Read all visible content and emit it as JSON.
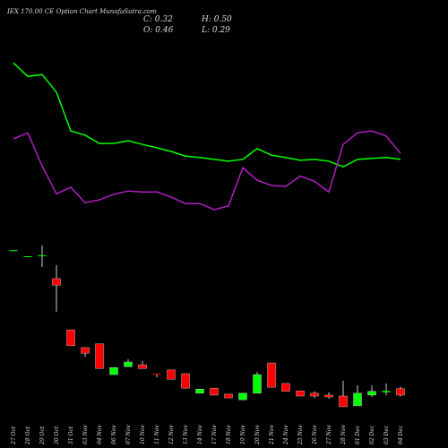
{
  "chart_data": {
    "type": "candlestick",
    "title": "IEX 170.00 CE Option Chart MunafaSutra.com",
    "info": [
      "C: 0.32",
      "H: 0.50",
      "O: 0.46",
      "L: 0.29"
    ],
    "categories": [
      "27 Oct",
      "28 Oct",
      "29 Oct",
      "30 Oct",
      "31 Oct",
      "03 Nov",
      "04 Nov",
      "06 Nov",
      "07 Nov",
      "10 Nov",
      "11 Nov",
      "12 Nov",
      "13 Nov",
      "14 Nov",
      "17 Nov",
      "18 Nov",
      "19 Nov",
      "20 Nov",
      "21 Nov",
      "24 Nov",
      "25 Nov",
      "26 Nov",
      "27 Nov",
      "28 Nov",
      "01 Dec",
      "02 Dec",
      "03 Dec",
      "04 Dec"
    ],
    "open": [
      3.41,
      3.29,
      3.31,
      2.82,
      1.72,
      1.34,
      1.42,
      0.76,
      0.93,
      0.97,
      0.78,
      0.86,
      0.78,
      0.36,
      0.47,
      0.34,
      0.22,
      0.36,
      1.01,
      0.57,
      0.41,
      0.36,
      0.32,
      0.3,
      0.09,
      0.32,
      0.38,
      0.46
    ],
    "high": [
      3.43,
      3.3,
      3.53,
      3.11,
      1.72,
      1.34,
      1.42,
      0.91,
      1.09,
      1.05,
      0.78,
      0.86,
      0.78,
      0.45,
      0.47,
      0.34,
      0.36,
      0.82,
      1.01,
      0.57,
      0.41,
      0.4,
      0.38,
      0.63,
      0.53,
      0.53,
      0.57,
      0.5
    ],
    "low": [
      3.41,
      3.29,
      3.07,
      2.11,
      1.38,
      1.14,
      0.89,
      0.76,
      0.93,
      0.89,
      0.7,
      0.66,
      0.47,
      0.36,
      0.32,
      0.26,
      0.22,
      0.36,
      0.49,
      0.4,
      0.3,
      0.26,
      0.24,
      0.07,
      0.09,
      0.28,
      0.32,
      0.29
    ],
    "close": [
      3.43,
      3.3,
      3.32,
      2.68,
      1.38,
      1.22,
      0.89,
      0.91,
      1.03,
      0.89,
      0.76,
      0.66,
      0.47,
      0.45,
      0.32,
      0.26,
      0.36,
      0.76,
      0.49,
      0.4,
      0.3,
      0.3,
      0.28,
      0.07,
      0.36,
      0.4,
      0.41,
      0.32
    ],
    "up_color": "#00ff00",
    "down_color": "#ff0000",
    "series": [
      {
        "color": "#00ff00",
        "values": [
          7.45,
          7.16,
          7.2,
          6.82,
          5.99,
          5.9,
          5.72,
          5.72,
          5.78,
          5.7,
          5.63,
          5.55,
          5.45,
          5.42,
          5.38,
          5.34,
          5.38,
          5.61,
          5.47,
          5.42,
          5.36,
          5.38,
          5.34,
          5.22,
          5.38,
          5.4,
          5.42,
          5.38
        ]
      },
      {
        "color": "#b020c0",
        "values": [
          5.82,
          5.95,
          5.24,
          4.64,
          4.78,
          4.45,
          4.51,
          4.63,
          4.7,
          4.68,
          4.68,
          4.57,
          4.43,
          4.43,
          4.3,
          4.38,
          5.2,
          4.93,
          4.82,
          4.8,
          5.02,
          4.91,
          4.68,
          5.7,
          5.95,
          5.99,
          5.88,
          5.51
        ]
      }
    ],
    "ylim": [
      0,
      8.8
    ]
  }
}
